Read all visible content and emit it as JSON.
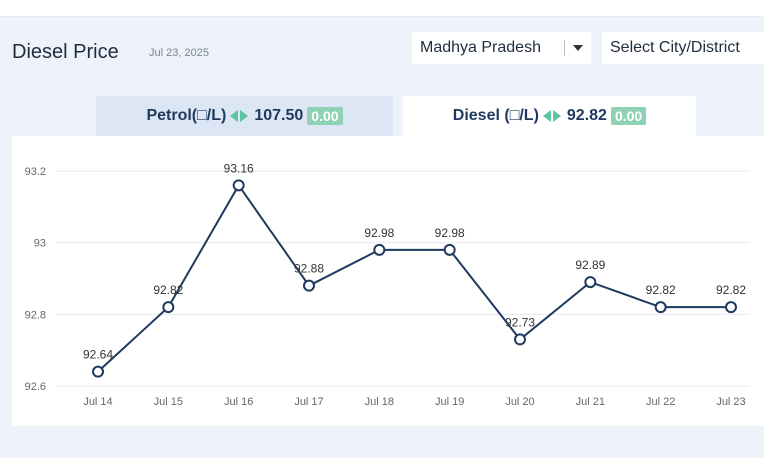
{
  "header": {
    "title": "Diesel Price",
    "date": "Jul 23, 2025"
  },
  "filters": {
    "state": "Madhya Pradesh",
    "city": "Select City/District"
  },
  "tabs": {
    "petrol": {
      "label": "Petrol(□/L)",
      "price": "107.50",
      "change": "0.00"
    },
    "diesel": {
      "label": "Diesel (□/L)",
      "price": "92.82",
      "change": "0.00"
    }
  },
  "colors": {
    "line": "#1f3a5f",
    "accent": "#5cc3a3",
    "change_badge": "#8fd1b5"
  },
  "chart_data": {
    "type": "line",
    "categories": [
      "Jul 14",
      "Jul 15",
      "Jul 16",
      "Jul 17",
      "Jul 18",
      "Jul 19",
      "Jul 20",
      "Jul 21",
      "Jul 22",
      "Jul 23"
    ],
    "values": [
      92.64,
      92.82,
      93.16,
      92.88,
      92.98,
      92.98,
      92.73,
      92.89,
      92.82,
      92.82
    ],
    "data_labels": [
      "92.64",
      "92.82",
      "93.16",
      "92.88",
      "92.98",
      "92.98",
      "92.73",
      "92.89",
      "92.82",
      "92.82"
    ],
    "yticks": [
      92.6,
      92.8,
      93,
      93.2
    ],
    "ytick_labels": [
      "92.6",
      "92.8",
      "93",
      "93.2"
    ],
    "ylim": [
      92.6,
      93.2
    ],
    "grid": true
  }
}
